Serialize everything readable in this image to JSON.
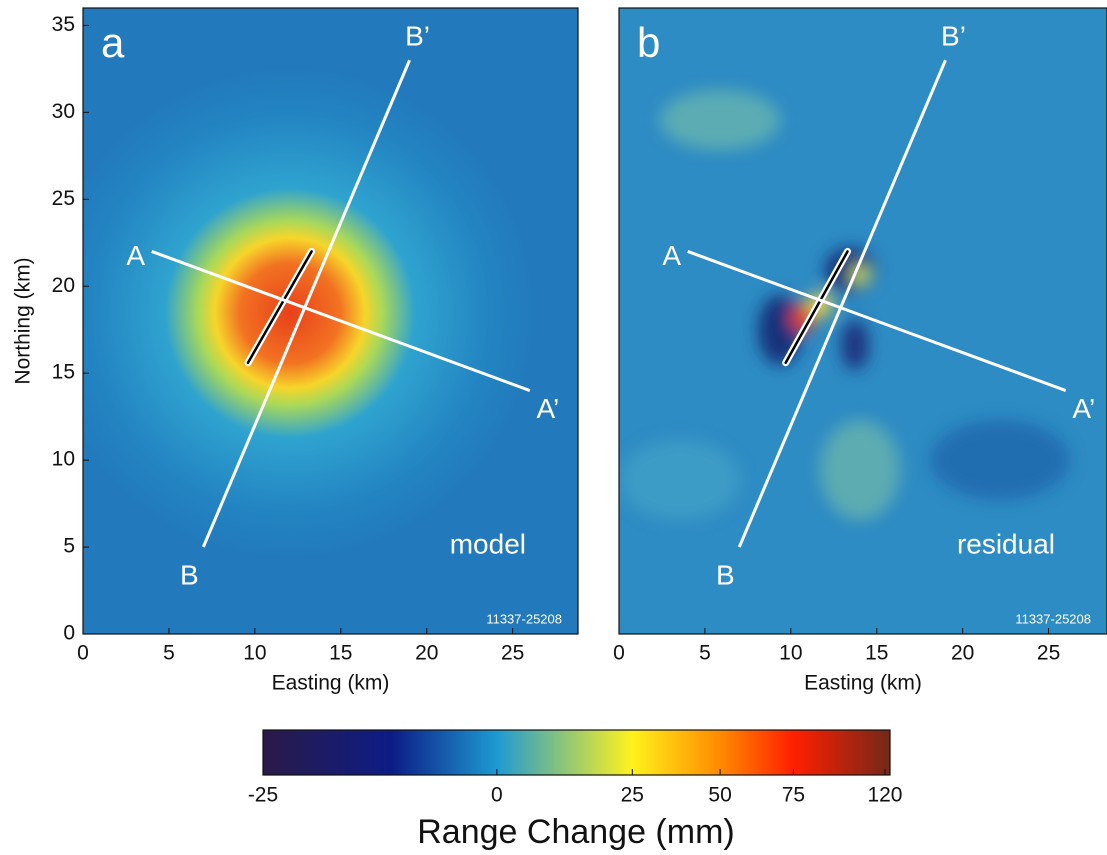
{
  "chart_data": [
    {
      "type": "map",
      "panel_label": "a",
      "xlabel": "Easting (km)",
      "ylabel": "Northing (km)",
      "annotation": "model",
      "id_label": "11337-25208",
      "xlim": [
        0,
        28.8
      ],
      "ylim": [
        0,
        36
      ],
      "xticks": [
        0,
        5,
        10,
        15,
        20,
        25
      ],
      "yticks": [
        0,
        5,
        10,
        15,
        20,
        25,
        30,
        35
      ],
      "profiles": [
        {
          "start_label": "A",
          "end_label": "A’",
          "x": [
            4,
            26
          ],
          "y": [
            22,
            14
          ]
        },
        {
          "start_label": "B",
          "end_label": "B’",
          "x": [
            7,
            19
          ],
          "y": [
            5,
            33
          ]
        }
      ],
      "fault": {
        "x": [
          9.6,
          13.3
        ],
        "y": [
          15.6,
          22
        ]
      }
    },
    {
      "type": "map",
      "panel_label": "b",
      "xlabel": "Easting (km)",
      "annotation": "residual",
      "id_label": "11337-25208",
      "xlim": [
        0,
        28.4
      ],
      "ylim": [
        0,
        36
      ],
      "xticks": [
        0,
        5,
        10,
        15,
        20,
        25
      ],
      "profiles": [
        {
          "start_label": "A",
          "end_label": "A’",
          "x": [
            4,
            26
          ],
          "y": [
            22,
            14
          ]
        },
        {
          "start_label": "B",
          "end_label": "B’",
          "x": [
            7,
            19
          ],
          "y": [
            5,
            33
          ]
        }
      ],
      "fault": {
        "x": [
          9.7,
          13.3
        ],
        "y": [
          15.6,
          22
        ]
      }
    },
    {
      "type": "colorbar",
      "title": "Range Change (mm)",
      "ticks": [
        -25,
        0,
        25,
        50,
        75,
        120
      ],
      "colors": [
        "#2b1a48",
        "#1e9ad2",
        "#fff21c",
        "#ff8a00",
        "#ff1f00",
        "#7a2818"
      ]
    }
  ]
}
